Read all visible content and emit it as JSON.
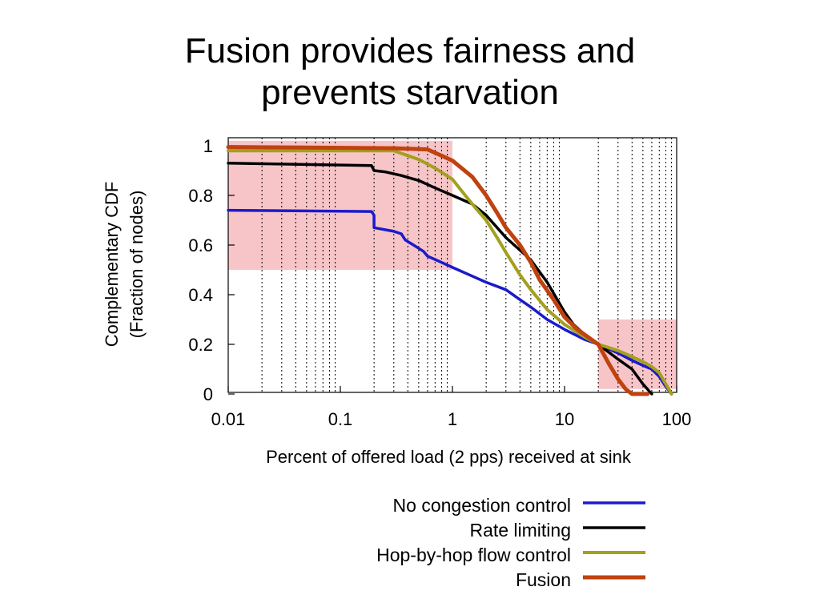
{
  "slide": {
    "title_line1": "Fusion provides fairness and",
    "title_line2": "prevents starvation"
  },
  "chart_data": {
    "type": "line",
    "x_scale": "log",
    "xlim": [
      0.01,
      100
    ],
    "ylim": [
      0,
      1
    ],
    "xlabel": "Percent of offered load (2 pps) received at sink",
    "ylabel_line1": "Complementary CDF",
    "ylabel_line2": "(Fraction of nodes)",
    "x_ticks": [
      {
        "value": 0.01,
        "label": "0.01"
      },
      {
        "value": 0.1,
        "label": "0.1"
      },
      {
        "value": 1,
        "label": "1"
      },
      {
        "value": 10,
        "label": "10"
      },
      {
        "value": 100,
        "label": "100"
      }
    ],
    "y_ticks": [
      {
        "value": 0,
        "label": "0"
      },
      {
        "value": 0.2,
        "label": "0.2"
      },
      {
        "value": 0.4,
        "label": "0.4"
      },
      {
        "value": 0.6,
        "label": "0.6"
      },
      {
        "value": 0.8,
        "label": "0.8"
      },
      {
        "value": 1,
        "label": "1"
      }
    ],
    "grid": "vertical dashed at log minor ticks",
    "legend_position": "below chart, right",
    "highlight_regions": [
      {
        "x": [
          0.01,
          1
        ],
        "y": [
          0.5,
          1.02
        ],
        "color": "#f7c5c8"
      },
      {
        "x": [
          20,
          100
        ],
        "y": [
          0.02,
          0.3
        ],
        "color": "#f7c5c8"
      }
    ],
    "series": [
      {
        "name": "No congestion control",
        "color": "#1a1acc",
        "width": 3.5,
        "points": [
          [
            0.01,
            0.74
          ],
          [
            0.19,
            0.735
          ],
          [
            0.2,
            0.72
          ],
          [
            0.2,
            0.67
          ],
          [
            0.3,
            0.655
          ],
          [
            0.35,
            0.645
          ],
          [
            0.38,
            0.62
          ],
          [
            0.45,
            0.6
          ],
          [
            0.55,
            0.575
          ],
          [
            0.6,
            0.555
          ],
          [
            0.8,
            0.53
          ],
          [
            1,
            0.51
          ],
          [
            1.5,
            0.475
          ],
          [
            2,
            0.45
          ],
          [
            3,
            0.42
          ],
          [
            4,
            0.38
          ],
          [
            5,
            0.35
          ],
          [
            7,
            0.3
          ],
          [
            10,
            0.26
          ],
          [
            15,
            0.22
          ],
          [
            20,
            0.2
          ],
          [
            30,
            0.165
          ],
          [
            40,
            0.135
          ],
          [
            50,
            0.115
          ],
          [
            60,
            0.1
          ],
          [
            70,
            0.07
          ],
          [
            80,
            0.03
          ],
          [
            90,
            0.0
          ]
        ]
      },
      {
        "name": "Rate limiting",
        "color": "#000000",
        "width": 3.5,
        "points": [
          [
            0.01,
            0.93
          ],
          [
            0.19,
            0.92
          ],
          [
            0.2,
            0.9
          ],
          [
            0.25,
            0.895
          ],
          [
            0.35,
            0.88
          ],
          [
            0.5,
            0.86
          ],
          [
            0.7,
            0.83
          ],
          [
            1,
            0.8
          ],
          [
            1.5,
            0.765
          ],
          [
            2,
            0.72
          ],
          [
            3,
            0.63
          ],
          [
            5,
            0.54
          ],
          [
            7,
            0.45
          ],
          [
            10,
            0.33
          ],
          [
            12,
            0.28
          ],
          [
            15,
            0.24
          ],
          [
            20,
            0.2
          ],
          [
            30,
            0.14
          ],
          [
            40,
            0.1
          ],
          [
            50,
            0.04
          ],
          [
            60,
            0.0
          ]
        ]
      },
      {
        "name": "Hop-by-hop flow control",
        "color": "#a3a01e",
        "width": 4,
        "points": [
          [
            0.01,
            0.98
          ],
          [
            0.3,
            0.98
          ],
          [
            0.5,
            0.945
          ],
          [
            0.7,
            0.91
          ],
          [
            1,
            0.865
          ],
          [
            1.3,
            0.8
          ],
          [
            1.6,
            0.75
          ],
          [
            2,
            0.7
          ],
          [
            2.5,
            0.63
          ],
          [
            3,
            0.57
          ],
          [
            4,
            0.48
          ],
          [
            5,
            0.42
          ],
          [
            7,
            0.34
          ],
          [
            10,
            0.28
          ],
          [
            15,
            0.23
          ],
          [
            20,
            0.2
          ],
          [
            30,
            0.175
          ],
          [
            40,
            0.15
          ],
          [
            50,
            0.13
          ],
          [
            60,
            0.11
          ],
          [
            70,
            0.085
          ],
          [
            80,
            0.04
          ],
          [
            90,
            0.0
          ]
        ]
      },
      {
        "name": "Fusion",
        "color": "#c0420f",
        "width": 5,
        "points": [
          [
            0.01,
            0.995
          ],
          [
            0.3,
            0.99
          ],
          [
            0.6,
            0.985
          ],
          [
            0.8,
            0.96
          ],
          [
            1,
            0.94
          ],
          [
            1.5,
            0.875
          ],
          [
            2,
            0.8
          ],
          [
            2.5,
            0.73
          ],
          [
            3,
            0.67
          ],
          [
            4,
            0.6
          ],
          [
            5,
            0.53
          ],
          [
            6,
            0.46
          ],
          [
            8,
            0.38
          ],
          [
            10,
            0.31
          ],
          [
            13,
            0.26
          ],
          [
            20,
            0.2
          ],
          [
            25,
            0.12
          ],
          [
            30,
            0.06
          ],
          [
            35,
            0.02
          ],
          [
            40,
            0.0
          ],
          [
            55,
            0.0
          ]
        ]
      }
    ]
  }
}
